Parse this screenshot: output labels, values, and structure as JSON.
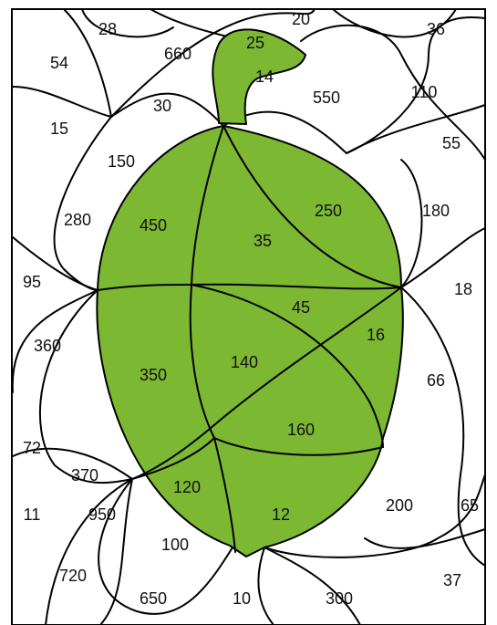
{
  "numbers": [
    28,
    20,
    36,
    54,
    660,
    25,
    14,
    550,
    110,
    30,
    15,
    55,
    150,
    250,
    180,
    280,
    450,
    35,
    95,
    18,
    45,
    360,
    16,
    140,
    350,
    66,
    160,
    72,
    370,
    120,
    200,
    65,
    11,
    950,
    12,
    100,
    720,
    37,
    650,
    10,
    300
  ]
}
